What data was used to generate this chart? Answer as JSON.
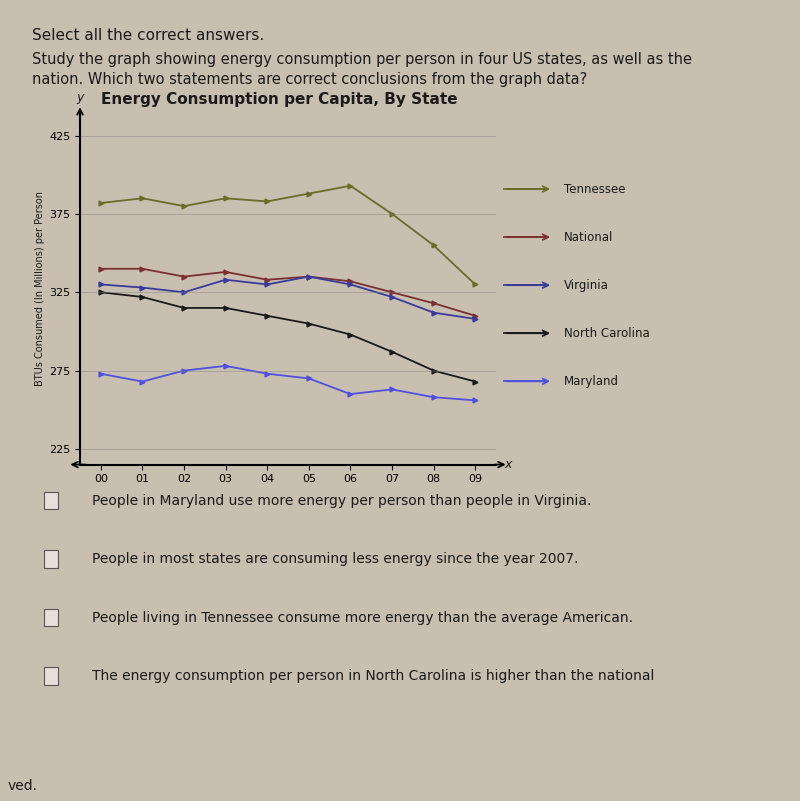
{
  "title": "Energy Consumption per Capita, By State",
  "xlabel": "x",
  "ylabel": "BTUs Consumed (In Millions) per Person",
  "years": [
    0,
    1,
    2,
    3,
    4,
    5,
    6,
    7,
    8,
    9
  ],
  "year_labels": [
    "00",
    "01",
    "02",
    "03",
    "04",
    "05",
    "06",
    "07",
    "08",
    "09"
  ],
  "ylim": [
    215,
    440
  ],
  "yticks": [
    225,
    275,
    325,
    375,
    425
  ],
  "series": {
    "Tennessee": {
      "color": "#6b6b2a",
      "values": [
        382,
        385,
        380,
        385,
        383,
        388,
        393,
        375,
        355,
        330
      ]
    },
    "National": {
      "color": "#7a3030",
      "values": [
        340,
        340,
        335,
        338,
        333,
        335,
        332,
        325,
        318,
        310
      ]
    },
    "Virginia": {
      "color": "#3a3a9c",
      "values": [
        330,
        328,
        325,
        333,
        330,
        335,
        330,
        322,
        312,
        308
      ]
    },
    "North Carolina": {
      "color": "#1a1a1a",
      "values": [
        325,
        322,
        315,
        315,
        310,
        305,
        298,
        287,
        275,
        268
      ]
    },
    "Maryland": {
      "color": "#5050dd",
      "values": [
        273,
        268,
        275,
        278,
        273,
        270,
        260,
        263,
        258,
        256
      ]
    }
  },
  "bg_color": "#c8bfb0",
  "text_color": "#1a1a1a",
  "header_text1": "Select all the correct answers.",
  "header_text2": "Study the graph showing energy consumption per person in four US states, as well as the",
  "header_text3": "nation. Which two statements are correct conclusions from the graph data?",
  "answers": [
    "People in Maryland use more energy per person than people in Virginia.",
    "People in most states are consuming less energy since the year 2007.",
    "People living in Tennessee consume more energy than the average American.",
    "The energy consumption per person in North Carolina is higher than the national"
  ],
  "footer_text": "ved."
}
